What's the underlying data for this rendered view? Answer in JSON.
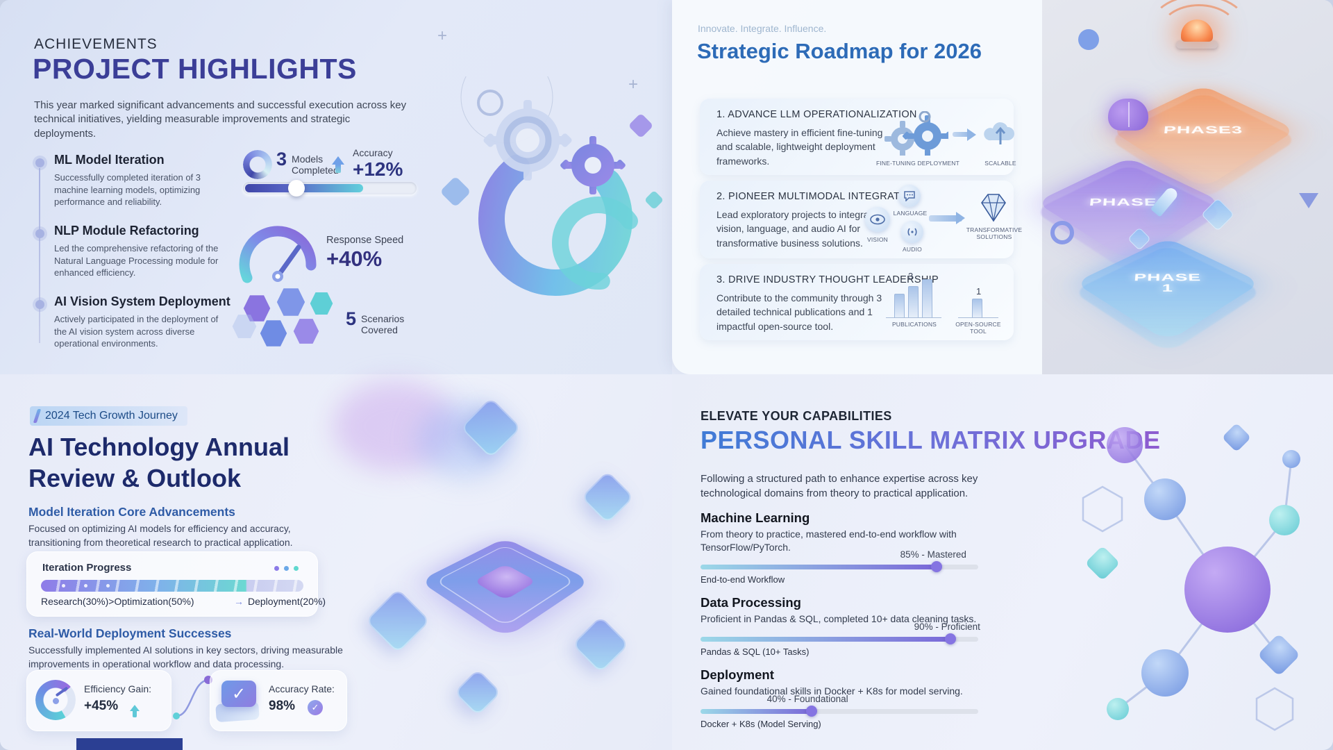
{
  "theme": {
    "accent_indigo": "#3b3e97",
    "accent_blue": "#2d6bb7",
    "accent_purple": "#8e5cd0",
    "accent_teal": "#66d4da",
    "bg": "#e4eaf7"
  },
  "project_highlights": {
    "kicker": "ACHIEVEMENTS",
    "title": "PROJECT HIGHLIGHTS",
    "description": "This year marked significant advancements and successful execution across key technical initiatives, yielding measurable improvements and strategic deployments.",
    "timeline": [
      {
        "title": "ML Model Iteration",
        "description": "Successfully completed iteration of 3 machine learning models, optimizing performance and reliability."
      },
      {
        "title": "NLP Module Refactoring",
        "description": "Led the comprehensive refactoring of the Natural Language Processing module for enhanced efficiency."
      },
      {
        "title": "AI Vision System Deployment",
        "description": "Actively participated in the deployment of the AI vision system across diverse operational environments."
      }
    ],
    "stats": {
      "models": {
        "value": "3",
        "label_line1": "Models",
        "label_line2": "Completed"
      },
      "accuracy": {
        "label": "Accuracy",
        "value": "+12%"
      },
      "response": {
        "label": "Response Speed",
        "value": "+40%"
      },
      "scenarios": {
        "value": "5",
        "label_line1": "Scenarios",
        "label_line2": "Covered"
      }
    }
  },
  "roadmap": {
    "kicker": "Innovate. Integrate. Influence.",
    "title": "Strategic Roadmap for 2026",
    "items": [
      {
        "heading": "1. ADVANCE LLM OPERATIONALIZATION",
        "description": "Achieve mastery in efficient fine-tuning and scalable, lightweight deployment frameworks.",
        "labels": {
          "left": "FINE-TUNING DEPLOYMENT",
          "right": "SCALABLE"
        }
      },
      {
        "heading": "2. PIONEER MULTIMODAL INTEGRATION",
        "description": "Lead exploratory projects to integrate vision, language, and audio AI for transformative business solutions.",
        "labels": {
          "vision": "VISION",
          "language": "LANGUAGE",
          "audio": "AUDIO",
          "result": "TRANSFORMATIVE SOLUTIONS"
        }
      },
      {
        "heading": "3. DRIVE INDUSTRY THOUGHT LEADERSHIP",
        "description": "Contribute to the community through 3 detailed technical publications and 1 impactful open-source tool.",
        "chart": {
          "group1_value": "3",
          "group1_label": "PUBLICATIONS",
          "group2_value": "1",
          "group2_label": "OPEN-SOURCE TOOL"
        }
      }
    ],
    "phases": [
      {
        "label": "PHASE3"
      },
      {
        "label": "PHASE2"
      },
      {
        "label": "PHASE 1"
      }
    ]
  },
  "annual_review": {
    "badge": "2024 Tech Growth Journey",
    "title_line1": "AI Technology Annual",
    "title_line2": "Review & Outlook",
    "section1": {
      "heading": "Model Iteration Core Advancements",
      "description": "Focused on optimizing AI models for efficiency and accuracy, transitioning from theoretical research to practical application."
    },
    "progress_card": {
      "title": "Iteration Progress",
      "left_label": "Research(30%)>Optimization(50%)",
      "arrow": "→",
      "right_label": "Deployment(20%)"
    },
    "section2": {
      "heading": "Real-World Deployment Successes",
      "description": "Successfully implemented AI solutions in key sectors, driving measurable improvements in operational workflow and data processing."
    },
    "stat_cards": [
      {
        "label": "Efficiency Gain:",
        "value": "+45%"
      },
      {
        "label": "Accuracy Rate:",
        "value": "98%"
      }
    ]
  },
  "skill_matrix": {
    "kicker": "ELEVATE YOUR CAPABILITIES",
    "title": "PERSONAL SKILL MATRIX UPGRADE",
    "description": "Following a structured path to enhance expertise across key technological domains from theory to practical application.",
    "skills": [
      {
        "name": "Machine Learning",
        "description": "From theory to practice, mastered end-to-end workflow with TensorFlow/PyTorch.",
        "percent": 85,
        "caption": "85% - Mastered",
        "sub_label": "End-to-end Workflow"
      },
      {
        "name": "Data Processing",
        "description": "Proficient in Pandas & SQL, completed 10+ data cleaning tasks.",
        "percent": 90,
        "caption": "90% - Proficient",
        "sub_label": "Pandas & SQL (10+ Tasks)"
      },
      {
        "name": "Deployment",
        "description": "Gained foundational skills in Docker + K8s for model serving.",
        "percent": 40,
        "caption": "40% - Foundational",
        "sub_label": "Docker + K8s (Model Serving)"
      }
    ]
  }
}
